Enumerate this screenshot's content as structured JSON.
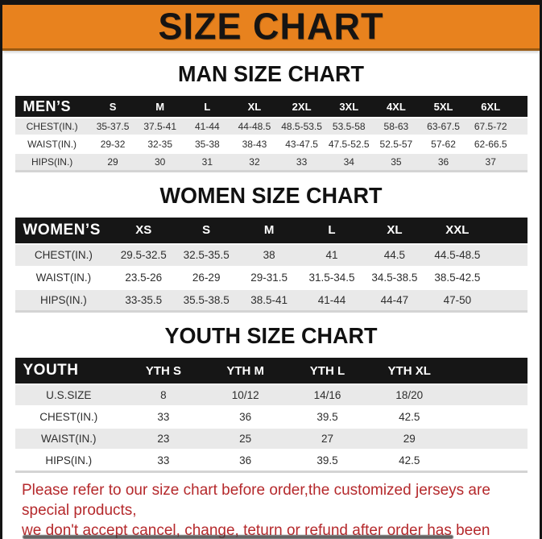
{
  "banner": {
    "title": "SIZE CHART",
    "bg_color": "#e8821e",
    "text_color": "#161413"
  },
  "sections": [
    {
      "heading": "MAN SIZE CHART",
      "table": {
        "name": "MEN’S",
        "columns": [
          "S",
          "M",
          "L",
          "XL",
          "2XL",
          "3XL",
          "4XL",
          "5XL",
          "6XL"
        ],
        "rows": [
          {
            "label": "CHEST(IN.)",
            "values": [
              "35-37.5",
              "37.5-41",
              "41-44",
              "44-48.5",
              "48.5-53.5",
              "53.5-58",
              "58-63",
              "63-67.5",
              "67.5-72"
            ]
          },
          {
            "label": "WAIST(IN.)",
            "values": [
              "29-32",
              "32-35",
              "35-38",
              "38-43",
              "43-47.5",
              "47.5-52.5",
              "52.5-57",
              "57-62",
              "62-66.5"
            ]
          },
          {
            "label": "HIPS(IN.)",
            "values": [
              "29",
              "30",
              "31",
              "32",
              "33",
              "34",
              "35",
              "36",
              "37"
            ]
          }
        ]
      }
    },
    {
      "heading": "WOMEN SIZE CHART",
      "table": {
        "name": "WOMEN’S",
        "columns": [
          "XS",
          "S",
          "M",
          "L",
          "XL",
          "XXL"
        ],
        "rows": [
          {
            "label": "CHEST(IN.)",
            "values": [
              "29.5-32.5",
              "32.5-35.5",
              "38",
              "41",
              "44.5",
              "44.5-48.5"
            ]
          },
          {
            "label": "WAIST(IN.)",
            "values": [
              "23.5-26",
              "26-29",
              "29-31.5",
              "31.5-34.5",
              "34.5-38.5",
              "38.5-42.5"
            ]
          },
          {
            "label": "HIPS(IN.)",
            "values": [
              "33-35.5",
              "35.5-38.5",
              "38.5-41",
              "41-44",
              "44-47",
              "47-50"
            ]
          }
        ]
      }
    },
    {
      "heading": "YOUTH SIZE CHART",
      "table": {
        "name": "YOUTH",
        "columns": [
          "YTH S",
          "YTH M",
          "YTH L",
          "YTH XL"
        ],
        "rows": [
          {
            "label": "U.S.SIZE",
            "values": [
              "8",
              "10/12",
              "14/16",
              "18/20"
            ]
          },
          {
            "label": "CHEST(IN.)",
            "values": [
              "33",
              "36",
              "39.5",
              "42.5"
            ]
          },
          {
            "label": "WAIST(IN.)",
            "values": [
              "23",
              "25",
              "27",
              "29"
            ]
          },
          {
            "label": "HIPS(IN.)",
            "values": [
              "33",
              "36",
              "39.5",
              "42.5"
            ]
          }
        ]
      }
    }
  ],
  "footer": {
    "line1": "Please refer to our size chart before order,the customized jerseys are special products,",
    "line2": "we don't accept cancel, change, teturn or refund after order has been placed!",
    "text_color": "#b5292c"
  }
}
